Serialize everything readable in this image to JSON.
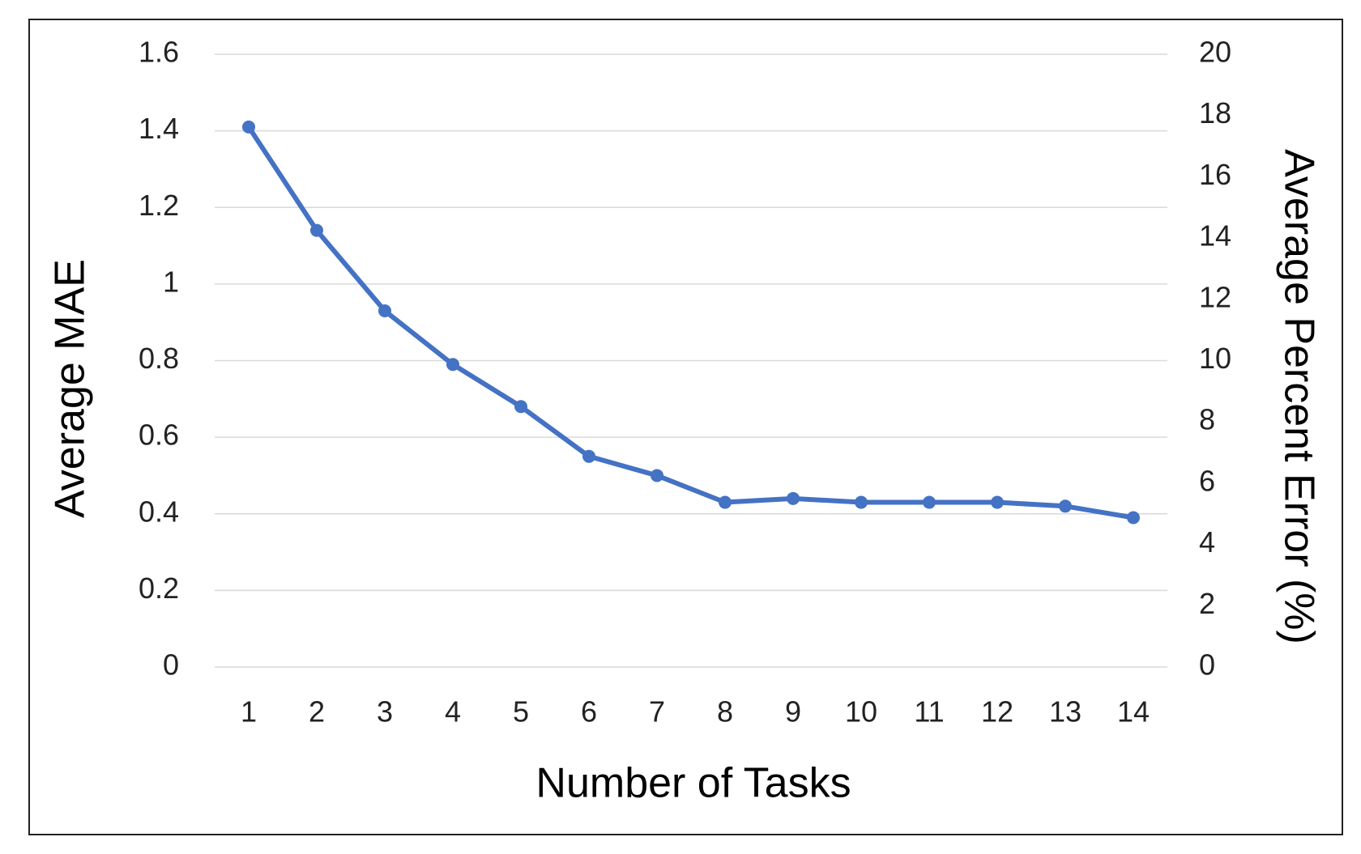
{
  "chart_data": {
    "type": "line",
    "x_label": "Number of Tasks",
    "y_label": "Average MAE",
    "y2_label": "Average Percent Error (%)",
    "categories": [
      "1",
      "2",
      "3",
      "4",
      "5",
      "6",
      "7",
      "8",
      "9",
      "10",
      "11",
      "12",
      "13",
      "14"
    ],
    "series": [
      {
        "name": "Average MAE",
        "color": "#4472c4",
        "values": [
          1.41,
          1.14,
          0.93,
          0.79,
          0.68,
          0.55,
          0.5,
          0.43,
          0.44,
          0.43,
          0.43,
          0.43,
          0.42,
          0.39
        ]
      }
    ],
    "ylim": [
      0,
      1.6
    ],
    "yticks": [
      0,
      0.2,
      0.4,
      0.6,
      0.8,
      1,
      1.2,
      1.4,
      1.6
    ],
    "y2lim": [
      0,
      20
    ],
    "y2ticks": [
      0,
      2,
      4,
      6,
      8,
      10,
      12,
      14,
      16,
      18,
      20
    ],
    "grid": true
  }
}
